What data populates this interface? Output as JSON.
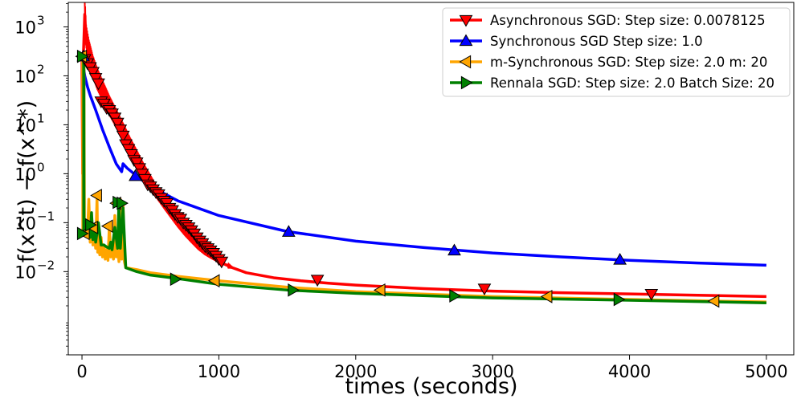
{
  "chart_data": {
    "type": "line",
    "title": "",
    "xlabel": "times (seconds)",
    "ylabel": "f(x^t) − f(x^*)",
    "xlim": [
      -100,
      5200
    ],
    "ylim_log10": [
      -3.7,
      3.5
    ],
    "yscale": "log",
    "grid": false,
    "legend_position": "top-right",
    "x_ticks": [
      0,
      1000,
      2000,
      3000,
      4000,
      5000
    ],
    "x_tick_labels": [
      "0",
      "1000",
      "2000",
      "3000",
      "4000",
      "5000"
    ],
    "y_ticks": [
      {
        "base": "10",
        "exp": "−2",
        "value": 0.01
      },
      {
        "base": "10",
        "exp": "−1",
        "value": 0.1
      },
      {
        "base": "10",
        "exp": "0",
        "value": 1
      },
      {
        "base": "10",
        "exp": "1",
        "value": 10
      },
      {
        "base": "10",
        "exp": "2",
        "value": 100
      },
      {
        "base": "10",
        "exp": "3",
        "value": 1000
      }
    ],
    "series": [
      {
        "name": "Asynchronous SGD: Step size: 0.0078125",
        "color": "#ff0000",
        "marker": "triangle-down",
        "x": [
          0,
          5,
          10,
          20,
          30,
          50,
          80,
          110,
          150,
          200,
          250,
          300,
          350,
          400,
          450,
          500,
          550,
          600,
          650,
          700,
          750,
          800,
          850,
          900,
          950,
          1000,
          1100,
          1200,
          1400,
          1600,
          1800,
          2000,
          2500,
          3000,
          3500,
          4000,
          4500,
          5000
        ],
        "y": [
          250,
          1.0,
          250,
          1800,
          500,
          250,
          120,
          70,
          40,
          20,
          11,
          6.0,
          3.2,
          1.8,
          1.0,
          0.6,
          0.35,
          0.22,
          0.14,
          0.09,
          0.06,
          0.042,
          0.03,
          0.023,
          0.019,
          0.016,
          0.012,
          0.0095,
          0.0075,
          0.0065,
          0.0058,
          0.0053,
          0.0045,
          0.004,
          0.0037,
          0.0035,
          0.0033,
          0.0031
        ],
        "marker_x": [
          20,
          40,
          60,
          80,
          100,
          120,
          140,
          160,
          180,
          200,
          220,
          240,
          260,
          280,
          300,
          320,
          340,
          360,
          380,
          400,
          420,
          440,
          460,
          480,
          500,
          520,
          540,
          560,
          580,
          600,
          620,
          640,
          660,
          680,
          700,
          720,
          740,
          760,
          780,
          800,
          820,
          840,
          860,
          880,
          900,
          920,
          940,
          960,
          980,
          1000,
          1020,
          1720,
          2940,
          4160
        ],
        "marker_y": [
          220,
          180,
          150,
          120,
          90,
          70,
          30,
          27,
          22,
          20,
          17,
          14,
          11,
          8,
          6,
          4,
          3.2,
          2.5,
          1.9,
          1.7,
          1.3,
          1.0,
          0.78,
          0.6,
          0.55,
          0.48,
          0.42,
          0.38,
          0.32,
          0.28,
          0.25,
          0.2,
          0.18,
          0.15,
          0.13,
          0.12,
          0.1,
          0.09,
          0.08,
          0.07,
          0.06,
          0.05,
          0.043,
          0.038,
          0.033,
          0.03,
          0.027,
          0.024,
          0.021,
          0.018,
          0.016,
          0.0068,
          0.0045,
          0.0035
        ]
      },
      {
        "name": "Synchronous SGD Step size: 1.0",
        "color": "#0000ff",
        "marker": "triangle-up",
        "x": [
          0,
          20,
          40,
          60,
          100,
          150,
          200,
          250,
          290,
          300,
          330,
          400,
          500,
          700,
          1000,
          1500,
          2000,
          2500,
          3000,
          3500,
          4000,
          4500,
          5000
        ],
        "y": [
          250,
          100,
          60,
          40,
          20,
          8,
          3.5,
          1.6,
          1.1,
          1.6,
          1.3,
          0.9,
          0.55,
          0.28,
          0.14,
          0.066,
          0.042,
          0.031,
          0.024,
          0.02,
          0.017,
          0.015,
          0.0135
        ],
        "marker_x": [
          10,
          390,
          1510,
          2720,
          3930
        ],
        "marker_y": [
          250,
          0.9,
          0.065,
          0.027,
          0.0175
        ]
      },
      {
        "name": "m-Synchronous  SGD: Step size: 2.0 m: 20",
        "color": "#ffa500",
        "marker": "triangle-left",
        "x": [
          0,
          5,
          6,
          10,
          14,
          18,
          25,
          40,
          50,
          60,
          70,
          80,
          90,
          100,
          110,
          115,
          120,
          130,
          140,
          150,
          160,
          170,
          180,
          190,
          200,
          210,
          220,
          230,
          240,
          250,
          260,
          270,
          280,
          290,
          300,
          310,
          320,
          400,
          500,
          700,
          1000,
          1500,
          2000,
          3000,
          4000,
          5000
        ],
        "y": [
          250,
          250,
          0.055,
          0.055,
          250,
          0.055,
          0.06,
          0.055,
          0.3,
          0.04,
          0.09,
          0.035,
          0.06,
          0.03,
          0.32,
          0.025,
          0.08,
          0.022,
          0.05,
          0.02,
          0.035,
          0.018,
          0.028,
          0.017,
          0.09,
          0.02,
          0.03,
          0.018,
          0.14,
          0.02,
          0.04,
          0.016,
          0.3,
          0.018,
          0.26,
          0.016,
          0.012,
          0.011,
          0.0095,
          0.008,
          0.0065,
          0.0048,
          0.0039,
          0.0031,
          0.0027,
          0.0024
        ],
        "marker_x": [
          0,
          20,
          80,
          110,
          190,
          250,
          970,
          2180,
          3400,
          4620
        ],
        "marker_y": [
          250,
          0.06,
          0.08,
          0.36,
          0.085,
          0.25,
          0.0065,
          0.0042,
          0.0031,
          0.0025
        ]
      },
      {
        "name": "Rennala SGD: Step size: 2.0 Batch Size: 20",
        "color": "#008000",
        "marker": "triangle-right",
        "x": [
          0,
          12,
          13,
          14,
          15,
          20,
          30,
          40,
          50,
          60,
          70,
          80,
          90,
          100,
          120,
          140,
          160,
          180,
          200,
          210,
          220,
          240,
          260,
          270,
          280,
          300,
          320,
          400,
          500,
          700,
          1000,
          1500,
          2000,
          3000,
          4000,
          5000
        ],
        "y": [
          250,
          250,
          0.06,
          250,
          0.06,
          0.058,
          0.056,
          0.055,
          0.07,
          0.05,
          0.16,
          0.045,
          0.09,
          0.04,
          0.1,
          0.035,
          0.035,
          0.032,
          0.03,
          0.04,
          0.028,
          0.08,
          0.03,
          0.26,
          0.03,
          0.2,
          0.012,
          0.01,
          0.0085,
          0.0072,
          0.0055,
          0.0042,
          0.0036,
          0.0029,
          0.0026,
          0.0023
        ],
        "marker_x": [
          0,
          0,
          60,
          260,
          290,
          680,
          1540,
          2720,
          3920
        ],
        "marker_y": [
          250,
          0.06,
          0.09,
          0.26,
          0.25,
          0.007,
          0.0042,
          0.0032,
          0.0027
        ]
      }
    ]
  }
}
